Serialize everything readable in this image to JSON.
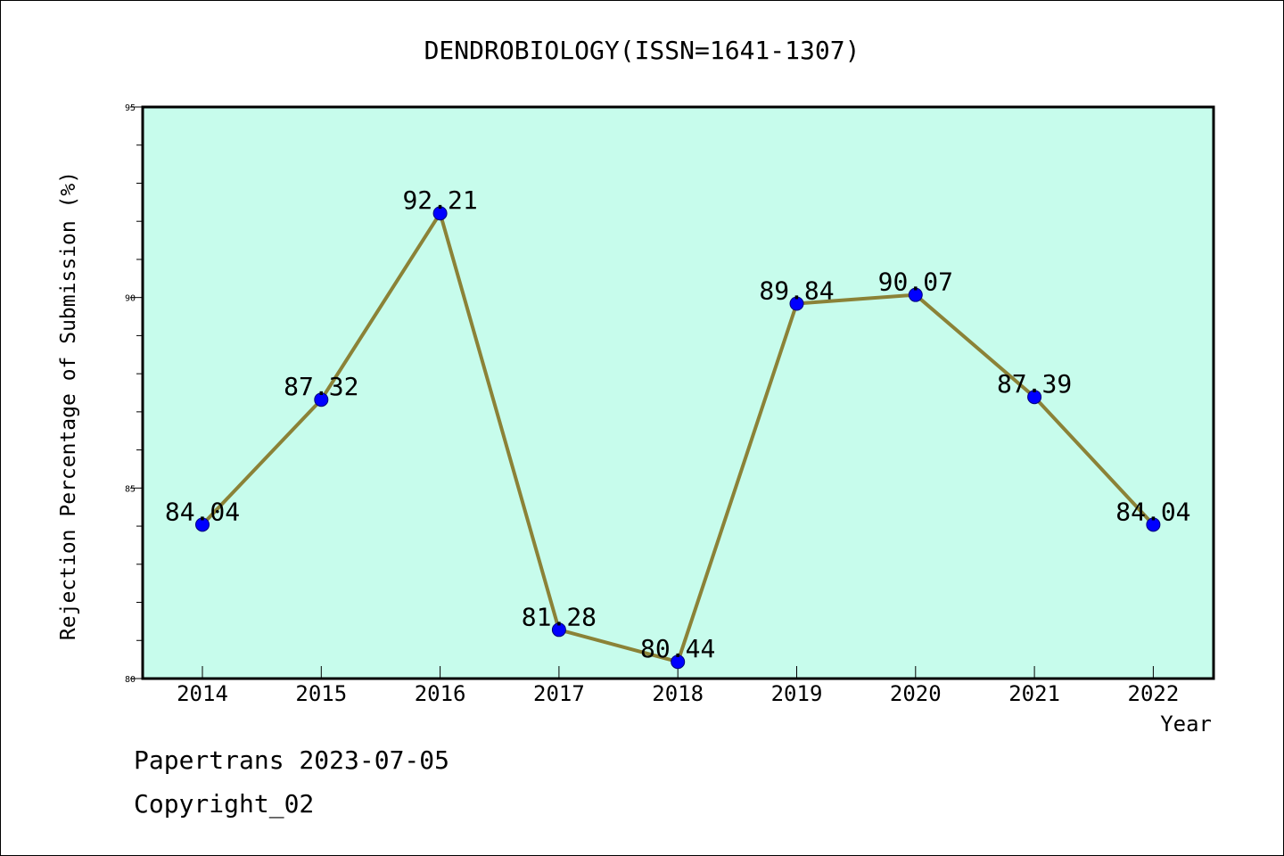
{
  "chart_data": {
    "type": "line",
    "title": "DENDROBIOLOGY(ISSN=1641-1307)",
    "xlabel": "Year",
    "ylabel": "Rejection Percentage of Submission (%)",
    "categories": [
      "2014",
      "2015",
      "2016",
      "2017",
      "2018",
      "2019",
      "2020",
      "2021",
      "2022"
    ],
    "values": [
      84.04,
      87.32,
      92.21,
      81.28,
      80.44,
      89.84,
      90.07,
      87.39,
      84.04
    ],
    "data_labels": [
      "84.04",
      "87.32",
      "92.21",
      "81.28",
      "80.44",
      "89.84",
      "90.07",
      "87.39",
      "84.04"
    ],
    "ylim": [
      80,
      95
    ],
    "y_ticks": [
      "80",
      "85",
      "90",
      "95"
    ],
    "colors": {
      "plot_background": "#c7fcec",
      "line": "#8b8237",
      "marker": "#0000ff"
    },
    "grid": false
  },
  "footer": {
    "line1": "Papertrans 2023-07-05",
    "line2": "Copyright_02"
  }
}
